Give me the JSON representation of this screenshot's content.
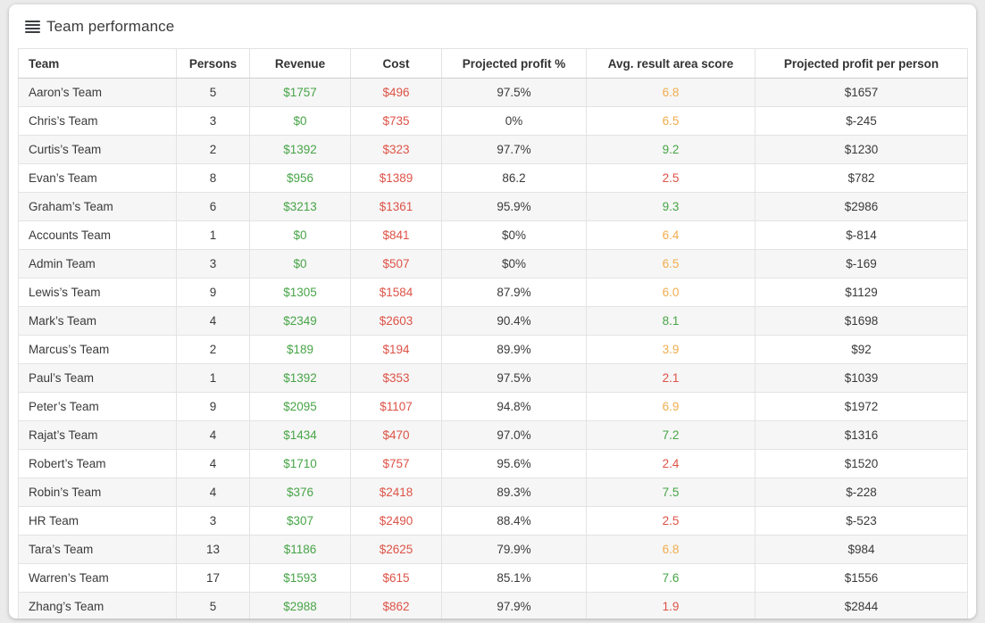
{
  "card": {
    "title": "Team performance",
    "icon": "table-list-icon"
  },
  "colors": {
    "positive": "#47a447",
    "negative": "#dd5347",
    "score_good": "#47a447",
    "score_mid": "#f0ad4e",
    "score_bad": "#dd5347"
  },
  "table": {
    "columns": [
      {
        "key": "team",
        "label": "Team"
      },
      {
        "key": "persons",
        "label": "Persons"
      },
      {
        "key": "revenue",
        "label": "Revenue"
      },
      {
        "key": "cost",
        "label": "Cost"
      },
      {
        "key": "profit_pct",
        "label": "Projected profit %"
      },
      {
        "key": "score",
        "label": "Avg. result area score"
      },
      {
        "key": "profit_per_person",
        "label": "Projected profit per person"
      }
    ],
    "rows": [
      {
        "team": "Aaron’s Team",
        "persons": "5",
        "revenue": "$1757",
        "cost": "$496",
        "profit_pct": "97.5%",
        "score": "6.8",
        "score_level": "orange",
        "profit_per_person": "$1657"
      },
      {
        "team": "Chris’s Team",
        "persons": "3",
        "revenue": "$0",
        "cost": "$735",
        "profit_pct": "0%",
        "score": "6.5",
        "score_level": "orange",
        "profit_per_person": "$-245"
      },
      {
        "team": "Curtis’s Team",
        "persons": "2",
        "revenue": "$1392",
        "cost": "$323",
        "profit_pct": "97.7%",
        "score": "9.2",
        "score_level": "green",
        "profit_per_person": "$1230"
      },
      {
        "team": "Evan’s Team",
        "persons": "8",
        "revenue": "$956",
        "cost": "$1389",
        "profit_pct": "86.2",
        "score": "2.5",
        "score_level": "red",
        "profit_per_person": "$782"
      },
      {
        "team": "Graham’s Team",
        "persons": "6",
        "revenue": "$3213",
        "cost": "$1361",
        "profit_pct": "95.9%",
        "score": "9.3",
        "score_level": "green",
        "profit_per_person": "$2986"
      },
      {
        "team": "Accounts Team",
        "persons": "1",
        "revenue": "$0",
        "cost": "$841",
        "profit_pct": "$0%",
        "score": "6.4",
        "score_level": "orange",
        "profit_per_person": "$-814"
      },
      {
        "team": "Admin Team",
        "persons": "3",
        "revenue": "$0",
        "cost": "$507",
        "profit_pct": "$0%",
        "score": "6.5",
        "score_level": "orange",
        "profit_per_person": "$-169"
      },
      {
        "team": "Lewis’s Team",
        "persons": "9",
        "revenue": "$1305",
        "cost": "$1584",
        "profit_pct": "87.9%",
        "score": "6.0",
        "score_level": "orange",
        "profit_per_person": "$1129"
      },
      {
        "team": "Mark’s Team",
        "persons": "4",
        "revenue": "$2349",
        "cost": "$2603",
        "profit_pct": "90.4%",
        "score": "8.1",
        "score_level": "green",
        "profit_per_person": "$1698"
      },
      {
        "team": "Marcus’s Team",
        "persons": "2",
        "revenue": "$189",
        "cost": "$194",
        "profit_pct": "89.9%",
        "score": "3.9",
        "score_level": "orange",
        "profit_per_person": "$92"
      },
      {
        "team": "Paul’s Team",
        "persons": "1",
        "revenue": "$1392",
        "cost": "$353",
        "profit_pct": "97.5%",
        "score": "2.1",
        "score_level": "red",
        "profit_per_person": "$1039"
      },
      {
        "team": "Peter’s Team",
        "persons": "9",
        "revenue": "$2095",
        "cost": "$1107",
        "profit_pct": "94.8%",
        "score": "6.9",
        "score_level": "orange",
        "profit_per_person": "$1972"
      },
      {
        "team": "Rajat’s Team",
        "persons": "4",
        "revenue": "$1434",
        "cost": "$470",
        "profit_pct": "97.0%",
        "score": "7.2",
        "score_level": "green",
        "profit_per_person": "$1316"
      },
      {
        "team": "Robert’s Team",
        "persons": "4",
        "revenue": "$1710",
        "cost": "$757",
        "profit_pct": "95.6%",
        "score": "2.4",
        "score_level": "red",
        "profit_per_person": "$1520"
      },
      {
        "team": "Robin’s Team",
        "persons": "4",
        "revenue": "$376",
        "cost": "$2418",
        "profit_pct": "89.3%",
        "score": "7.5",
        "score_level": "green",
        "profit_per_person": "$-228"
      },
      {
        "team": "HR Team",
        "persons": "3",
        "revenue": "$307",
        "cost": "$2490",
        "profit_pct": "88.4%",
        "score": "2.5",
        "score_level": "red",
        "profit_per_person": "$-523"
      },
      {
        "team": "Tara’s Team",
        "persons": "13",
        "revenue": "$1186",
        "cost": "$2625",
        "profit_pct": "79.9%",
        "score": "6.8",
        "score_level": "orange",
        "profit_per_person": "$984"
      },
      {
        "team": "Warren’s Team",
        "persons": "17",
        "revenue": "$1593",
        "cost": "$615",
        "profit_pct": "85.1%",
        "score": "7.6",
        "score_level": "green",
        "profit_per_person": "$1556"
      },
      {
        "team": "Zhang’s Team",
        "persons": "5",
        "revenue": "$2988",
        "cost": "$862",
        "profit_pct": "97.9%",
        "score": "1.9",
        "score_level": "red",
        "profit_per_person": "$2844"
      }
    ]
  }
}
